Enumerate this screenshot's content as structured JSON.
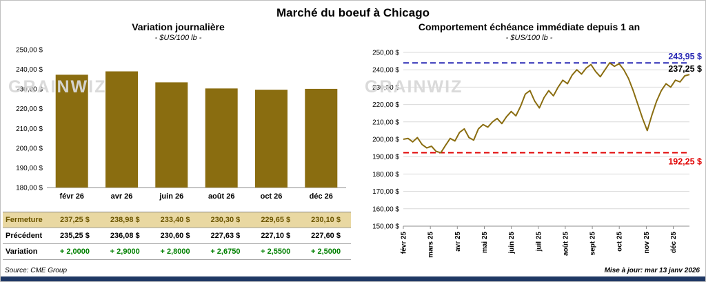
{
  "page": {
    "title": "Marché du boeuf à Chicago",
    "source": "Source: CME Group",
    "updated": "Mise à jour: mar 13 janv 2026"
  },
  "watermark": "GRAINWIZ",
  "colors": {
    "gold": "#8a6d10",
    "max_blue": "#2828b4",
    "min_red": "#e00000",
    "variation_green": "#008000",
    "highlight_tan": "#e9d8a2",
    "bottom_bar_navy": "#1f3864"
  },
  "left": {
    "title": "Variation  journalière",
    "subtitle": "- $US/100 lb -"
  },
  "right": {
    "title": "Comportement  échéance  immédiate  depuis  1 an",
    "subtitle": "- $US/100 lb -"
  },
  "table": {
    "rows": [
      {
        "label": "Fermeture",
        "values": [
          "237,25  $",
          "238,98  $",
          "233,40  $",
          "230,30  $",
          "229,65  $",
          "230,10  $"
        ]
      },
      {
        "label": "Précédent",
        "values": [
          "235,25  $",
          "236,08  $",
          "230,60  $",
          "227,63  $",
          "227,10  $",
          "227,60  $"
        ]
      },
      {
        "label": "Variation",
        "values": [
          "+ 2,0000",
          "+ 2,9000",
          "+ 2,8000",
          "+ 2,6750",
          "+ 2,5500",
          "+ 2,5000"
        ]
      }
    ]
  },
  "chart_data": [
    {
      "type": "bar",
      "title": "Variation journalière",
      "subtitle": "- $US/100 lb -",
      "categories": [
        "févr 26",
        "avr 26",
        "juin 26",
        "août 26",
        "oct 26",
        "déc 26"
      ],
      "values": [
        237.25,
        238.98,
        233.4,
        230.3,
        229.65,
        230.1
      ],
      "ylim": [
        180,
        250
      ],
      "grid": false,
      "bar_color": "#8a6d10",
      "yticks": [
        {
          "v": 250,
          "label": "250,00 $"
        },
        {
          "v": 240,
          "label": "240,00 $"
        },
        {
          "v": 230,
          "label": "230,00 $"
        },
        {
          "v": 220,
          "label": "220,00 $"
        },
        {
          "v": 210,
          "label": "210,00 $"
        },
        {
          "v": 200,
          "label": "200,00 $"
        },
        {
          "v": 190,
          "label": "190,00 $"
        },
        {
          "v": 180,
          "label": "180,00 $"
        }
      ]
    },
    {
      "type": "line",
      "title": "Comportement échéance immédiate depuis 1 an",
      "subtitle": "- $US/100 lb -",
      "x_labels": [
        "févr 25",
        "mars 25",
        "avr 25",
        "mai 25",
        "juin 25",
        "juil 25",
        "août 25",
        "sept 25",
        "oct 25",
        "nov 25",
        "déc 25"
      ],
      "values": [
        200,
        200.5,
        198.5,
        201,
        197,
        195,
        196,
        193,
        192.25,
        196.5,
        200.5,
        199,
        204,
        206,
        201,
        199.5,
        206,
        208.5,
        207,
        210,
        212,
        209,
        213,
        216,
        213.5,
        219,
        226,
        228,
        222,
        218,
        224,
        228,
        225,
        230,
        234,
        232,
        237,
        240,
        237.5,
        241,
        243,
        239,
        236,
        240,
        243.95,
        242,
        243.5,
        240,
        235,
        228,
        220,
        212,
        205,
        214,
        222,
        228,
        232,
        230,
        234,
        233,
        236.5,
        237.25
      ],
      "ylim": [
        150,
        250
      ],
      "grid": true,
      "line_color": "#8a6d10",
      "max_line": {
        "value": 243.95,
        "label": "243,95 $",
        "color": "#2828b4"
      },
      "min_line": {
        "value": 192.25,
        "label": "192,25 $",
        "color": "#e00000"
      },
      "last_label": {
        "value": 237.25,
        "label": "237,25 $",
        "color": "#000000"
      },
      "yticks": [
        {
          "v": 250,
          "label": "250,00 $"
        },
        {
          "v": 240,
          "label": "240,00 $"
        },
        {
          "v": 230,
          "label": "230,00 $"
        },
        {
          "v": 220,
          "label": "220,00 $"
        },
        {
          "v": 210,
          "label": "210,00 $"
        },
        {
          "v": 200,
          "label": "200,00 $"
        },
        {
          "v": 190,
          "label": "190,00 $"
        },
        {
          "v": 180,
          "label": "180,00 $"
        },
        {
          "v": 170,
          "label": "170,00 $"
        },
        {
          "v": 160,
          "label": "160,00 $"
        },
        {
          "v": 150,
          "label": "150,00 $"
        }
      ]
    }
  ]
}
